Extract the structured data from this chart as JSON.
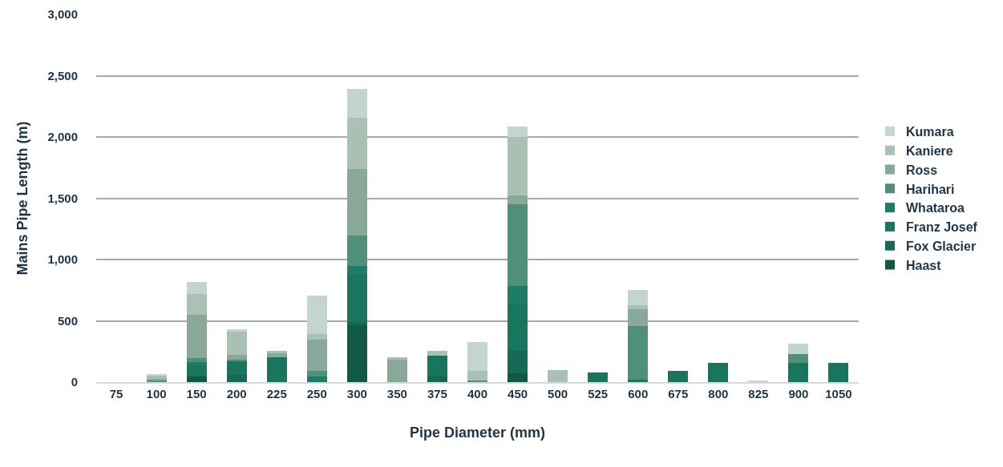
{
  "chart_data": {
    "type": "bar",
    "stacked": true,
    "xlabel": "Pipe Diameter (mm)",
    "ylabel": "Mains Pipe Length (m)",
    "categories": [
      "75",
      "100",
      "150",
      "200",
      "225",
      "250",
      "300",
      "350",
      "375",
      "400",
      "450",
      "500",
      "525",
      "600",
      "675",
      "800",
      "825",
      "900",
      "1050"
    ],
    "series": [
      {
        "name": "Haast",
        "color": "#115846",
        "values": [
          null,
          null,
          44,
          null,
          null,
          null,
          461,
          null,
          null,
          null,
          70,
          null,
          null,
          null,
          null,
          null,
          null,
          null,
          null
        ]
      },
      {
        "name": "Fox Glacier",
        "color": "#156a55",
        "values": [
          null,
          null,
          null,
          59,
          null,
          null,
          26,
          null,
          55,
          null,
          186,
          null,
          null,
          null,
          null,
          null,
          null,
          null,
          null
        ]
      },
      {
        "name": "Franz Josef",
        "color": "#18765f",
        "values": [
          null,
          null,
          94,
          114,
          204,
          null,
          390,
          null,
          158,
          null,
          386,
          null,
          77,
          20,
          92,
          160,
          null,
          160,
          154
        ]
      },
      {
        "name": "Whataroa",
        "color": "#1c7e66",
        "values": [
          null,
          null,
          24,
          null,
          null,
          44,
          70,
          null,
          null,
          null,
          145,
          null,
          null,
          null,
          null,
          null,
          null,
          null,
          null
        ]
      },
      {
        "name": "Harihari",
        "color": "#508f79",
        "values": [
          null,
          11,
          31,
          9,
          null,
          50,
          246,
          null,
          null,
          11,
          667,
          null,
          null,
          436,
          null,
          null,
          null,
          68,
          null
        ]
      },
      {
        "name": "Ross",
        "color": "#88a999",
        "values": [
          null,
          15,
          355,
          39,
          37,
          252,
          548,
          186,
          null,
          null,
          66,
          null,
          null,
          136,
          null,
          null,
          null,
          null,
          null
        ]
      },
      {
        "name": "Kaniere",
        "color": "#a9c0b5",
        "values": [
          null,
          26,
          171,
          197,
          11,
          44,
          414,
          18,
          39,
          83,
          480,
          101,
          null,
          35,
          null,
          null,
          null,
          null,
          null
        ]
      },
      {
        "name": "Kumara",
        "color": "#c4d4ce",
        "values": [
          null,
          15,
          101,
          13,
          null,
          318,
          235,
          null,
          null,
          235,
          88,
          null,
          null,
          125,
          null,
          null,
          15,
          83,
          null
        ]
      }
    ],
    "ylim": [
      0,
      3000
    ],
    "yticks": [
      0,
      500,
      {
        "value": 1000,
        "label": "1,000"
      },
      {
        "value": 1500,
        "label": "1,500"
      },
      {
        "value": 2000,
        "label": "2,000"
      },
      {
        "value": 2500,
        "label": "2,500"
      },
      {
        "value": 3000,
        "label": "3,000"
      }
    ],
    "grid": "y",
    "legend": "right"
  }
}
